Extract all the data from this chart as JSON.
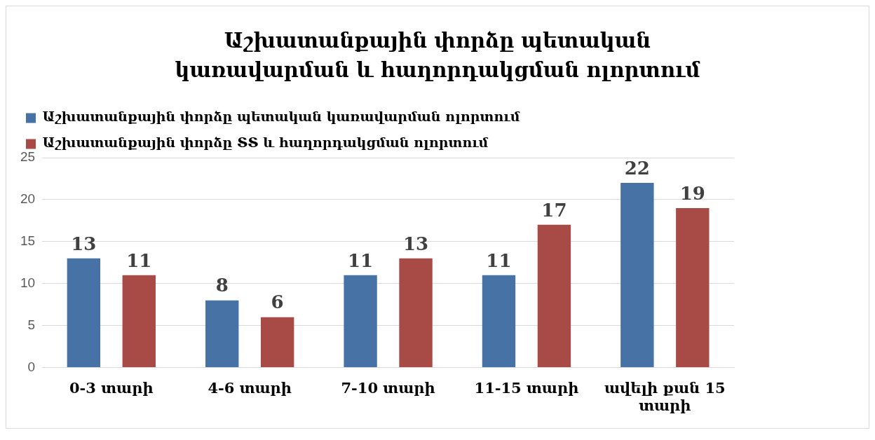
{
  "chart_data": {
    "type": "bar",
    "title": "Աշխատանքային փորձը պետական կառավարման և հաղորդակցման ոլորտում",
    "categories": [
      "0-3 տարի",
      "4-6 տարի",
      "7-10 տարի",
      "11-15 տարի",
      "ավելի քան 15 տարի"
    ],
    "series": [
      {
        "name": "Աշխատանքային փորձը պետական կառավարման ոլորտում",
        "color": "#4672a6",
        "values": [
          13,
          8,
          11,
          11,
          22
        ]
      },
      {
        "name": "Աշխատանքային փորձը ՏՏ և հաղորդակցման ոլորտում",
        "color": "#a84a46",
        "values": [
          11,
          6,
          13,
          17,
          19
        ]
      }
    ],
    "ylim": [
      0,
      25
    ],
    "yticks": [
      0,
      5,
      10,
      15,
      20,
      25
    ],
    "grid": "y",
    "legend": "top left",
    "data_labels": true
  }
}
